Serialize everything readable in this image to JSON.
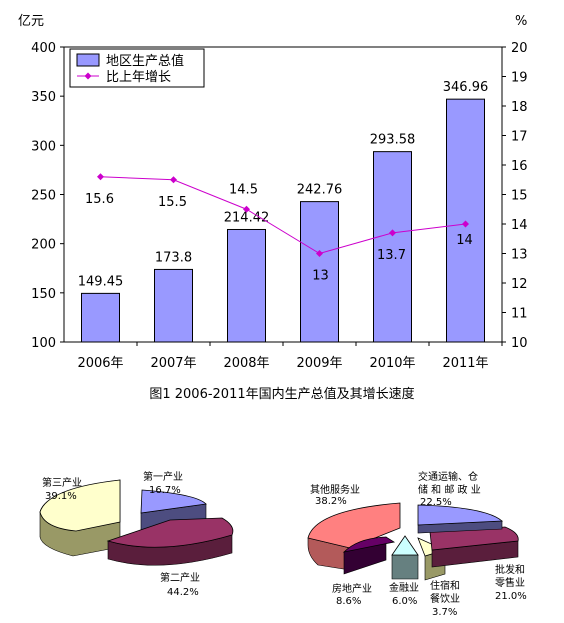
{
  "chart_data": [
    {
      "type": "bar",
      "title": "图1  2006-2011年国内生产总值及其增长速度",
      "yunit": "亿元",
      "y2unit": "%",
      "ylim": [
        100,
        400
      ],
      "y2lim": [
        10,
        20
      ],
      "categories": [
        "2006年",
        "2007年",
        "2008年",
        "2009年",
        "2010年",
        "2011年"
      ],
      "y_ticks": [
        "100",
        "150",
        "200",
        "250",
        "300",
        "350",
        "400"
      ],
      "y2_ticks": [
        "10",
        "11",
        "12",
        "13",
        "14",
        "15",
        "16",
        "17",
        "18",
        "19",
        "20"
      ],
      "legend_position": "top-left",
      "series": [
        {
          "name": "地区生产总值",
          "kind": "bar",
          "axis": "left",
          "color": "#9999ff",
          "values": [
            149.45,
            173.8,
            214.42,
            242.76,
            293.58,
            346.96
          ],
          "labels": [
            "149.45",
            "173.8",
            "214.42",
            "242.76",
            "293.58",
            "346.96"
          ]
        },
        {
          "name": "比上年增长",
          "kind": "line",
          "axis": "right",
          "color": "#cc00cc",
          "values": [
            15.6,
            15.5,
            14.5,
            13,
            13.7,
            14
          ],
          "labels": [
            "15.6",
            "15.5",
            "14.5",
            "13",
            "13.7",
            "14"
          ]
        }
      ]
    },
    {
      "type": "pie",
      "slices": [
        {
          "name": "第一产业",
          "value": 16.7,
          "label": "16.7%",
          "color": "#9999ff"
        },
        {
          "name": "第二产业",
          "value": 44.2,
          "label": "44.2%",
          "color": "#993366"
        },
        {
          "name": "第三产业",
          "value": 39.1,
          "label": "39.1%",
          "color": "#ffffcc"
        }
      ]
    },
    {
      "type": "pie",
      "slices": [
        {
          "name": "交通运输、仓储和邮政业",
          "line1": "交通运输、仓",
          "line2": "储 和 邮 政 业",
          "value": 22.5,
          "label": "22.5%",
          "color": "#9999ff"
        },
        {
          "name": "批发和零售业",
          "line1": "批发和",
          "line2": "零售业",
          "value": 21.0,
          "label": "21.0%",
          "color": "#993366"
        },
        {
          "name": "住宿和餐饮业",
          "line1": "住宿和",
          "line2": "餐饮业",
          "value": 3.7,
          "label": "3.7%",
          "color": "#ffffcc"
        },
        {
          "name": "金融业",
          "line1": "金融业",
          "line2": "",
          "value": 6.0,
          "label": "6.0%",
          "color": "#ccffff"
        },
        {
          "name": "房地产业",
          "line1": "房地产业",
          "line2": "",
          "value": 8.6,
          "label": "8.6%",
          "color": "#660066"
        },
        {
          "name": "其他服务业",
          "line1": "其他服务业",
          "line2": "",
          "value": 38.2,
          "label": "38.2%",
          "color": "#ff8080"
        }
      ]
    }
  ]
}
